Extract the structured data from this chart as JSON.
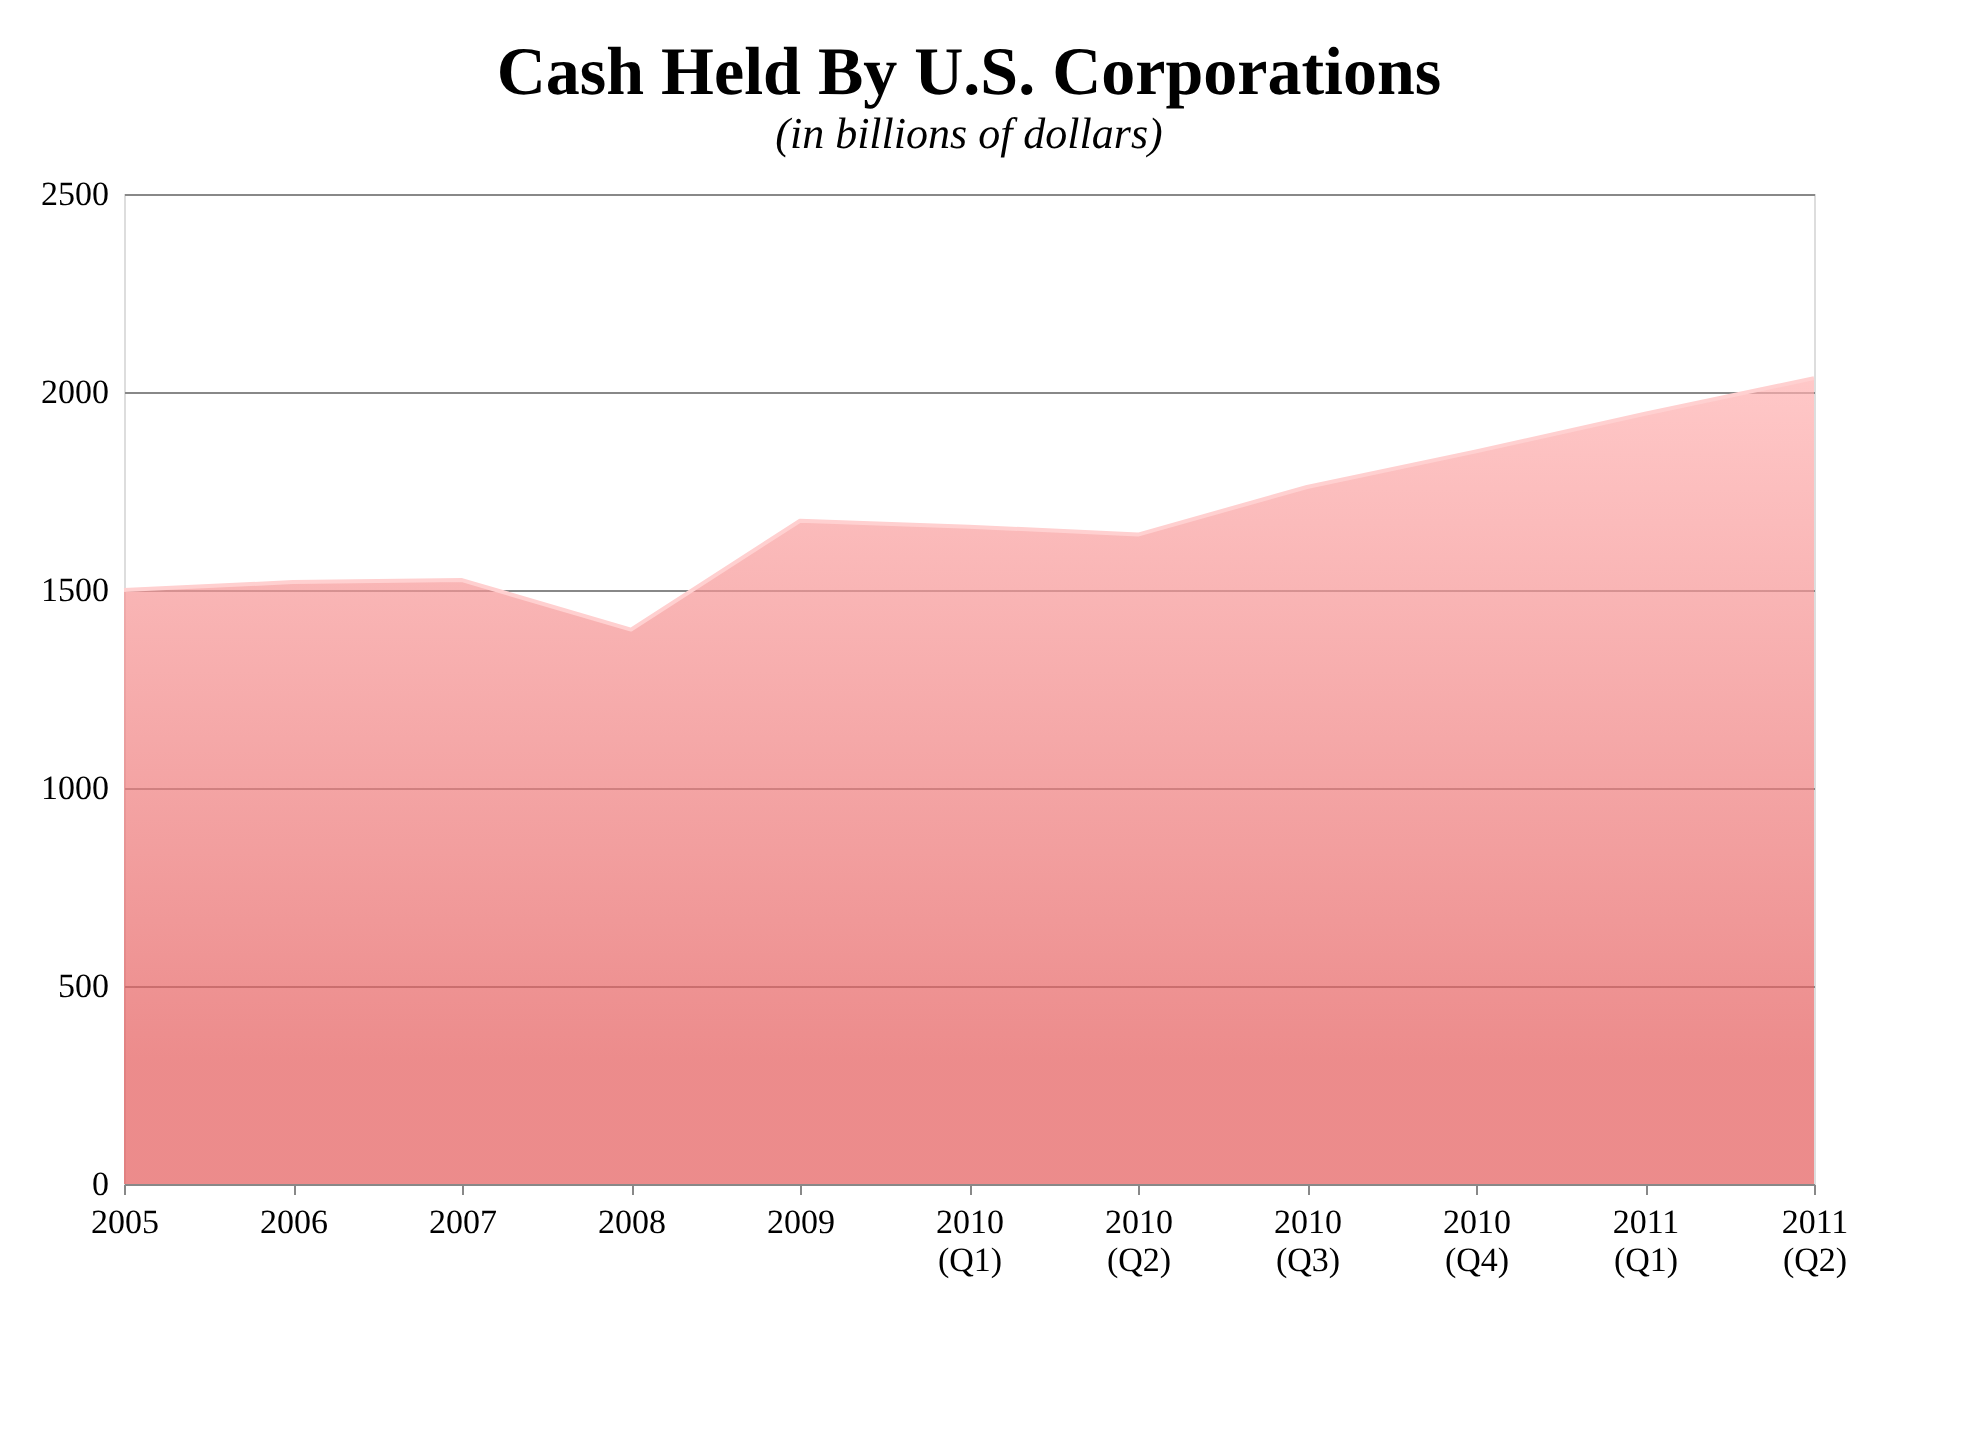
{
  "chart_data": {
    "type": "area",
    "title": "Cash Held By U.S. Corporations",
    "subtitle": "(in billions of dollars)",
    "categories": [
      "2005",
      "2006",
      "2007",
      "2008",
      "2009",
      "2010 (Q1)",
      "2010 (Q2)",
      "2010 (Q3)",
      "2010 (Q4)",
      "2011 (Q1)",
      "2011 (Q2)"
    ],
    "series": [
      {
        "color": "#e45a5a",
        "values": [
          1500,
          1520,
          1525,
          1400,
          1675,
          1660,
          1640,
          1760,
          1850,
          1945,
          2035
        ]
      }
    ],
    "ylim": [
      0,
      2500
    ],
    "yticks": [
      0,
      500,
      1000,
      1500,
      2000,
      2500
    ],
    "grid": "y"
  }
}
